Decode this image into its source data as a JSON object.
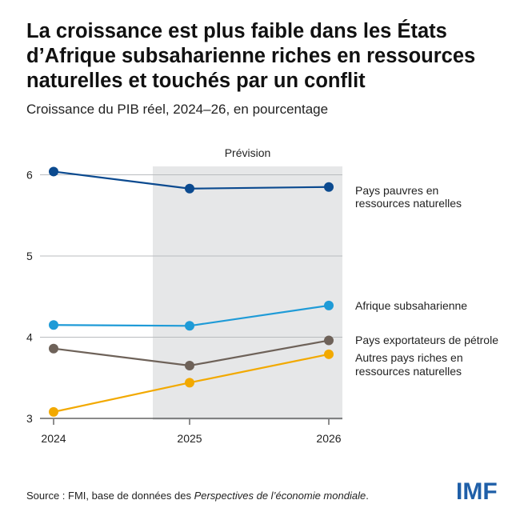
{
  "title": "La croissance est plus faible dans les États d’Afrique subsaharienne riches en ressources naturelles et touchés par un conflit",
  "subtitle": "Croissance du PIB réel, 2024–26, en pourcentage",
  "source_prefix": "Source : FMI, base de données des ",
  "source_italic": "Perspectives de l’économie mondiale",
  "source_suffix": ".",
  "logo": "IMF",
  "chart_data": {
    "type": "line",
    "title": "La croissance est plus faible dans les États d’Afrique subsaharienne riches en ressources naturelles et touchés par un conflit",
    "subtitle": "Croissance du PIB réel, 2024–26, en pourcentage",
    "categories": [
      "2024",
      "2025",
      "2026"
    ],
    "ylim": [
      3,
      6.1
    ],
    "yticks": [
      "3",
      "4",
      "5",
      "6"
    ],
    "forecast_label": "Prévision",
    "forecast_start": "2025",
    "series": [
      {
        "name": "Pays pauvres en ressources naturelles",
        "label_lines": [
          "Pays pauvres en",
          "ressources naturelles"
        ],
        "color": "#0b4a8f",
        "values": [
          6.04,
          5.83,
          5.85
        ]
      },
      {
        "name": "Afrique subsaharienne",
        "label_lines": [
          "Afrique subsaharienne"
        ],
        "color": "#1f9bd7",
        "values": [
          4.15,
          4.14,
          4.39
        ]
      },
      {
        "name": "Pays exportateurs de pétrole",
        "label_lines": [
          "Pays exportateurs de pétrole"
        ],
        "color": "#6e6259",
        "values": [
          3.86,
          3.65,
          3.96
        ]
      },
      {
        "name": "Autres pays riches en ressources naturelles",
        "label_lines": [
          "Autres pays riches en",
          "ressources naturelles"
        ],
        "color": "#f2a900",
        "values": [
          3.08,
          3.44,
          3.79
        ]
      }
    ]
  }
}
